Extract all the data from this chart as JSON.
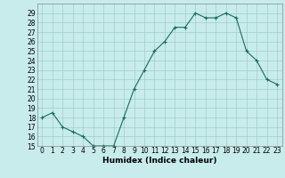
{
  "x": [
    0,
    1,
    2,
    3,
    4,
    5,
    6,
    7,
    8,
    9,
    10,
    11,
    12,
    13,
    14,
    15,
    16,
    17,
    18,
    19,
    20,
    21,
    22,
    23
  ],
  "y": [
    18,
    18.5,
    17,
    16.5,
    16,
    15,
    15,
    15,
    18,
    21,
    23,
    25,
    26,
    27.5,
    27.5,
    29,
    28.5,
    28.5,
    29,
    28.5,
    25,
    24,
    22,
    21.5
  ],
  "xlabel": "Humidex (Indice chaleur)",
  "ylim": [
    15,
    30
  ],
  "xlim": [
    -0.5,
    23.5
  ],
  "yticks": [
    15,
    16,
    17,
    18,
    19,
    20,
    21,
    22,
    23,
    24,
    25,
    26,
    27,
    28,
    29
  ],
  "xticks": [
    0,
    1,
    2,
    3,
    4,
    5,
    6,
    7,
    8,
    9,
    10,
    11,
    12,
    13,
    14,
    15,
    16,
    17,
    18,
    19,
    20,
    21,
    22,
    23
  ],
  "line_color": "#1a6b5a",
  "marker": "+",
  "marker_size": 3,
  "bg_color": "#c8ecec",
  "grid_color": "#a0cccc",
  "axis_fontsize": 6.5,
  "tick_fontsize": 5.5
}
